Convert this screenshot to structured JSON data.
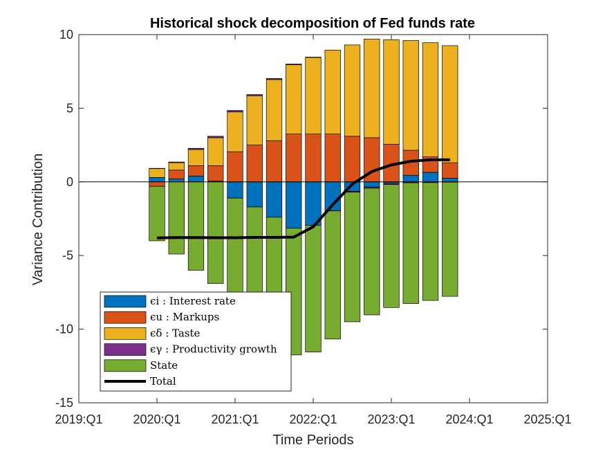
{
  "chart_data": {
    "type": "bar",
    "title": "Historical shock decomposition of Fed funds rate",
    "xlabel": "Time Periods",
    "ylabel": "Variance Contribution",
    "ylim": [
      -15,
      10
    ],
    "xlim": [
      0,
      24
    ],
    "yticks": [
      10,
      5,
      0,
      -5,
      -10,
      -15
    ],
    "ytick_labels": [
      "10",
      "5",
      "0",
      "-5",
      "-10",
      "-15"
    ],
    "xticks": [
      0,
      4,
      8,
      12,
      16,
      20,
      24
    ],
    "xtick_labels": [
      "2019:Q1",
      "2020:Q1",
      "2021:Q1",
      "2022:Q1",
      "2023:Q1",
      "2024:Q1",
      "2025:Q1"
    ],
    "x": [
      4,
      5,
      6,
      7,
      8,
      9,
      10,
      11,
      12,
      13,
      14,
      15,
      16,
      17,
      18,
      19,
      20
    ],
    "legend_position": "bottom-left",
    "series": [
      {
        "name": "ϵi : Interest rate",
        "color": "#0072BD",
        "values": [
          0.3,
          0.2,
          0.4,
          0.05,
          -1.1,
          -1.7,
          -2.4,
          -3.15,
          -2.95,
          -1.95,
          -0.65,
          -0.35,
          -0.1,
          0.45,
          0.65,
          0.25,
          0
        ]
      },
      {
        "name": "ϵu : Markups",
        "color": "#D95319",
        "values": [
          -0.3,
          0.6,
          0.7,
          1.05,
          2.05,
          2.5,
          2.8,
          3.25,
          3.25,
          3.25,
          3.1,
          3.0,
          2.55,
          1.7,
          1.05,
          1.05,
          0
        ]
      },
      {
        "name": "ϵδ : Taste",
        "color": "#EDB120",
        "values": [
          0.6,
          0.5,
          1.1,
          1.9,
          2.7,
          3.35,
          4.15,
          4.7,
          5.2,
          5.7,
          6.2,
          6.7,
          7.1,
          7.45,
          7.75,
          7.95,
          0
        ]
      },
      {
        "name": "ϵγ : Productivity growth",
        "color": "#7E2F8E",
        "values": [
          0.02,
          0.05,
          0.08,
          0.1,
          0.1,
          0.08,
          0.07,
          0.05,
          0.02,
          -0.02,
          -0.05,
          -0.08,
          -0.08,
          -0.06,
          -0.05,
          -0.02,
          0
        ]
      },
      {
        "name": "State",
        "color": "#77AC30",
        "values": [
          -3.7,
          -4.9,
          -6.0,
          -6.9,
          -8.0,
          -9.5,
          -10.5,
          -8.6,
          -8.6,
          -8.7,
          -8.8,
          -8.6,
          -8.35,
          -8.2,
          -8.0,
          -7.75,
          0
        ]
      }
    ],
    "total": {
      "name": "Total",
      "color": "#000000",
      "x": [
        4,
        5,
        6,
        7,
        8,
        9,
        10,
        11,
        12,
        13,
        14,
        15,
        16,
        17,
        18,
        19
      ],
      "values": [
        -3.8,
        -3.78,
        -3.78,
        -3.79,
        -3.79,
        -3.77,
        -3.77,
        -3.75,
        -3.05,
        -1.55,
        -0.15,
        0.7,
        1.15,
        1.4,
        1.5,
        1.5
      ]
    }
  }
}
